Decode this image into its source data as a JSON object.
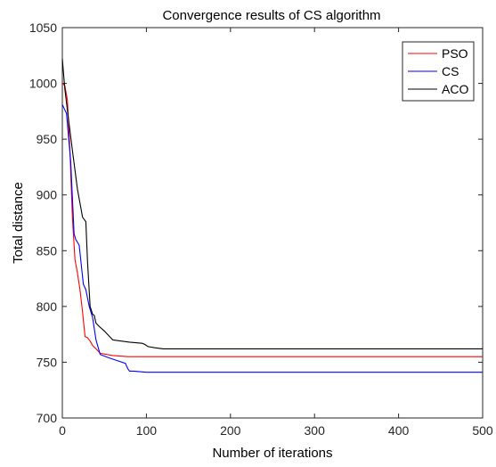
{
  "chart_data": {
    "type": "line",
    "title": "Convergence results of CS algorithm",
    "xlabel": "Number of iterations",
    "ylabel": "Total distance",
    "xlim": [
      0,
      500
    ],
    "ylim": [
      700,
      1050
    ],
    "xticks": [
      0,
      100,
      200,
      300,
      400,
      500
    ],
    "yticks": [
      700,
      750,
      800,
      850,
      900,
      950,
      1000,
      1050
    ],
    "grid": false,
    "legend_position": "top-right",
    "series": [
      {
        "name": "PSO",
        "color": "#ff0000",
        "x": [
          0,
          3,
          6,
          9,
          12,
          15,
          18,
          21,
          24,
          27,
          30,
          33,
          36,
          40,
          45,
          60,
          78,
          100,
          500
        ],
        "y": [
          1000,
          998,
          985,
          940,
          880,
          842,
          830,
          815,
          795,
          773,
          772,
          769,
          765,
          762,
          758,
          756,
          755,
          755,
          755
        ]
      },
      {
        "name": "CS",
        "color": "#0000ff",
        "x": [
          0,
          5,
          10,
          14,
          16,
          20,
          25,
          28,
          32,
          36,
          40,
          45,
          55,
          75,
          78,
          80,
          85,
          100,
          500
        ],
        "y": [
          981,
          973,
          930,
          865,
          860,
          855,
          820,
          815,
          800,
          790,
          770,
          757,
          754,
          749,
          744,
          742,
          742,
          741,
          741
        ]
      },
      {
        "name": "ACO",
        "color": "#000000",
        "x": [
          0,
          3,
          7,
          12,
          18,
          24,
          26,
          28,
          30,
          33,
          36,
          38,
          40,
          44,
          50,
          60,
          80,
          95,
          98,
          100,
          102,
          110,
          120,
          500
        ],
        "y": [
          1022,
          995,
          970,
          940,
          905,
          880,
          878,
          876,
          840,
          800,
          793,
          792,
          785,
          782,
          778,
          770,
          768,
          767,
          766,
          765,
          764,
          763,
          762,
          762
        ]
      }
    ]
  }
}
